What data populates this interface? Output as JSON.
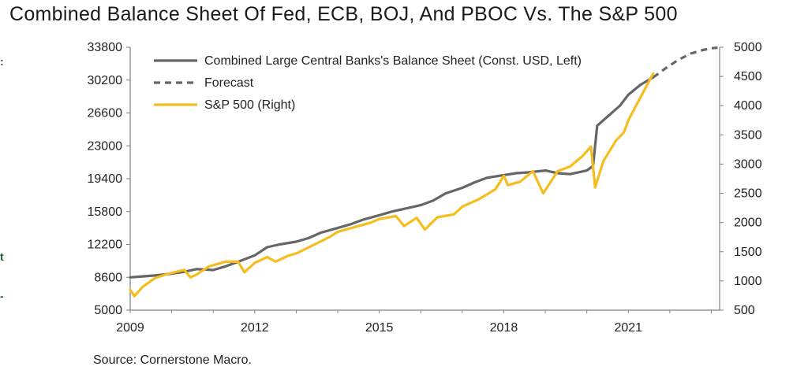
{
  "title": "Combined Balance Sheet Of Fed, ECB, BOJ, And PBOC Vs. The S&P 500",
  "source": "Source: Cornerstone Macro.",
  "edge_marks": [
    ":",
    "t",
    "-"
  ],
  "colors": {
    "balance_sheet": "#666666",
    "forecast": "#666666",
    "sp500": "#F5BE1E",
    "axis": "#808080"
  },
  "chart_data": {
    "type": "line",
    "x_ticks": [
      "2009",
      "2012",
      "2015",
      "2018",
      "2021"
    ],
    "xlim": [
      2009,
      2023.2
    ],
    "y_left": {
      "ticks": [
        "33800",
        "30200",
        "26600",
        "23000",
        "19400",
        "15800",
        "12200",
        "8600",
        "5000"
      ],
      "lim": [
        5000,
        33800
      ]
    },
    "y_right": {
      "ticks": [
        "5000",
        "4500",
        "4000",
        "3500",
        "3000",
        "2500",
        "2000",
        "1500",
        "1000",
        "500"
      ],
      "lim": [
        500,
        5000
      ]
    },
    "legend": {
      "position": "top-left",
      "entries": [
        "Combined Large Central Banks's Balance Sheet (Const. USD, Left)",
        "Forecast",
        "S&P 500 (Right)"
      ]
    },
    "series": [
      {
        "name": "Combined Large Central Banks's Balance Sheet (Const. USD, Left)",
        "axis": "left",
        "style": "solid",
        "x": [
          2009.0,
          2009.3,
          2009.6,
          2010.0,
          2010.3,
          2010.6,
          2011.0,
          2011.3,
          2011.6,
          2012.0,
          2012.3,
          2012.6,
          2013.0,
          2013.3,
          2013.6,
          2014.0,
          2014.3,
          2014.6,
          2015.0,
          2015.3,
          2015.6,
          2016.0,
          2016.3,
          2016.6,
          2017.0,
          2017.3,
          2017.6,
          2018.0,
          2018.3,
          2018.6,
          2019.0,
          2019.3,
          2019.6,
          2020.0,
          2020.15,
          2020.25,
          2020.5,
          2020.8,
          2021.0,
          2021.3,
          2021.6
        ],
        "values": [
          8600,
          8700,
          8800,
          9000,
          9200,
          9500,
          9400,
          9800,
          10300,
          11000,
          11900,
          12200,
          12500,
          12900,
          13500,
          14000,
          14400,
          14900,
          15400,
          15800,
          16100,
          16500,
          17000,
          17800,
          18400,
          19000,
          19500,
          19800,
          20000,
          20100,
          20300,
          20000,
          19900,
          20300,
          20800,
          25200,
          26200,
          27400,
          28600,
          29700,
          30500
        ]
      },
      {
        "name": "Forecast",
        "axis": "left",
        "style": "dashed",
        "x": [
          2021.6,
          2021.9,
          2022.2,
          2022.5,
          2022.8,
          2023.0,
          2023.15
        ],
        "values": [
          30500,
          31500,
          32400,
          33100,
          33500,
          33700,
          33750
        ]
      },
      {
        "name": "S&P 500 (Right)",
        "axis": "right",
        "style": "solid",
        "x": [
          2009.0,
          2009.1,
          2009.3,
          2009.6,
          2009.9,
          2010.3,
          2010.45,
          2010.6,
          2010.9,
          2011.3,
          2011.6,
          2011.75,
          2012.0,
          2012.3,
          2012.5,
          2012.8,
          2013.0,
          2013.4,
          2013.8,
          2014.0,
          2014.4,
          2014.8,
          2015.0,
          2015.4,
          2015.6,
          2015.9,
          2016.1,
          2016.4,
          2016.8,
          2017.0,
          2017.4,
          2017.8,
          2018.0,
          2018.1,
          2018.4,
          2018.7,
          2018.95,
          2019.3,
          2019.6,
          2019.9,
          2020.1,
          2020.2,
          2020.4,
          2020.7,
          2020.9,
          2021.0,
          2021.3,
          2021.6
        ],
        "values": [
          850,
          740,
          900,
          1050,
          1120,
          1190,
          1060,
          1110,
          1250,
          1330,
          1330,
          1150,
          1310,
          1410,
          1330,
          1430,
          1470,
          1610,
          1750,
          1840,
          1920,
          2000,
          2060,
          2110,
          1940,
          2080,
          1880,
          2090,
          2140,
          2270,
          2400,
          2570,
          2800,
          2640,
          2700,
          2880,
          2500,
          2880,
          2960,
          3140,
          3300,
          2600,
          3050,
          3400,
          3550,
          3750,
          4150,
          4550
        ]
      }
    ]
  }
}
